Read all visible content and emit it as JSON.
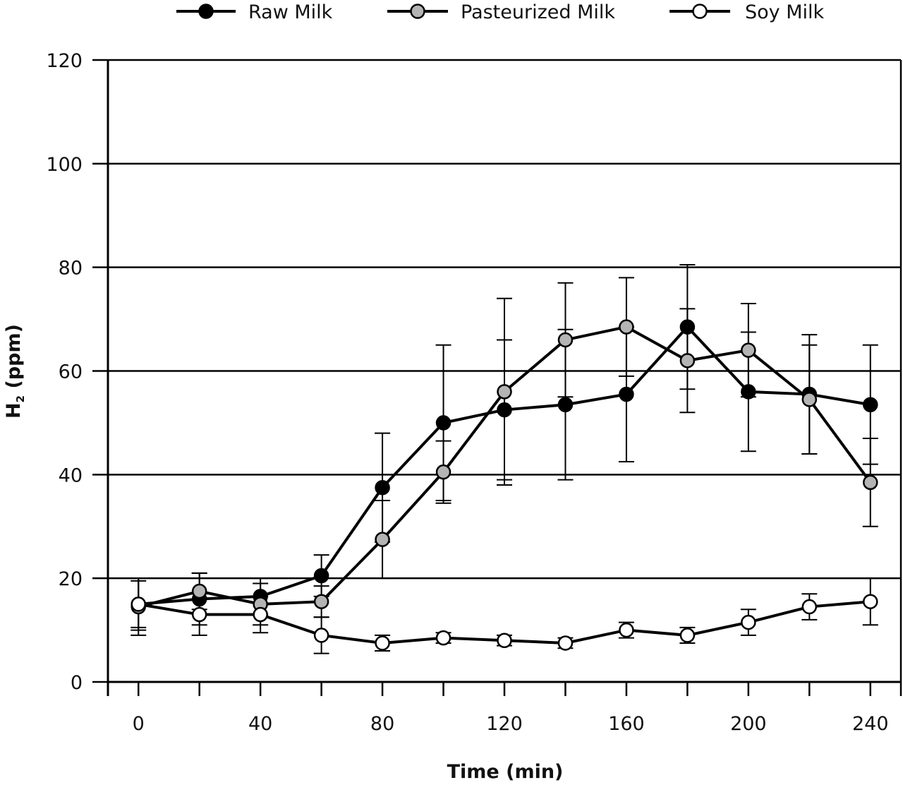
{
  "chart_data": {
    "type": "line",
    "title": "",
    "xlabel": "Time (min)",
    "ylabel_main": "H",
    "ylabel_sub": "2",
    "ylabel_rest": " (ppm)",
    "xlim": [
      -10,
      250
    ],
    "ylim": [
      0,
      120
    ],
    "x_ticks": [
      0,
      40,
      80,
      120,
      160,
      200,
      240
    ],
    "x_minor_ticks": [
      -10,
      20,
      60,
      100,
      140,
      180,
      220,
      250
    ],
    "y_ticks": [
      0,
      20,
      40,
      60,
      80,
      100,
      120
    ],
    "grid": "horizontal",
    "legend_position": "top",
    "x": [
      0,
      20,
      40,
      60,
      80,
      100,
      120,
      140,
      160,
      180,
      200,
      220,
      240
    ],
    "series": [
      {
        "name": "Raw Milk",
        "marker_fill": "#000000",
        "values": [
          15,
          16,
          16.5,
          20.5,
          37.5,
          50,
          52.5,
          53.5,
          55.5,
          68.5,
          56,
          55.5,
          53.5
        ],
        "errors": [
          5,
          5,
          3.5,
          4,
          10.5,
          15,
          13.5,
          14.5,
          13,
          12,
          11.5,
          11.5,
          11.5
        ]
      },
      {
        "name": "Pasteurized Milk",
        "marker_fill": "#b4b4b4",
        "values": [
          14.5,
          17.5,
          15,
          15.5,
          27.5,
          40.5,
          56,
          66,
          68.5,
          62,
          64,
          54.5,
          38.5
        ],
        "errors": [
          5.5,
          3.5,
          4,
          3,
          7.5,
          6,
          18,
          11,
          9.5,
          10,
          9,
          10.5,
          8.5
        ]
      },
      {
        "name": "Soy Milk",
        "marker_fill": "#ffffff",
        "values": [
          15,
          13,
          13,
          9,
          7.5,
          8.5,
          8,
          7.5,
          10,
          9,
          11.5,
          14.5,
          15.5
        ],
        "errors": [
          4.5,
          4,
          3.5,
          3.5,
          1.5,
          1,
          1,
          1,
          1.5,
          1.5,
          2.5,
          2.5,
          4.5
        ]
      }
    ]
  }
}
